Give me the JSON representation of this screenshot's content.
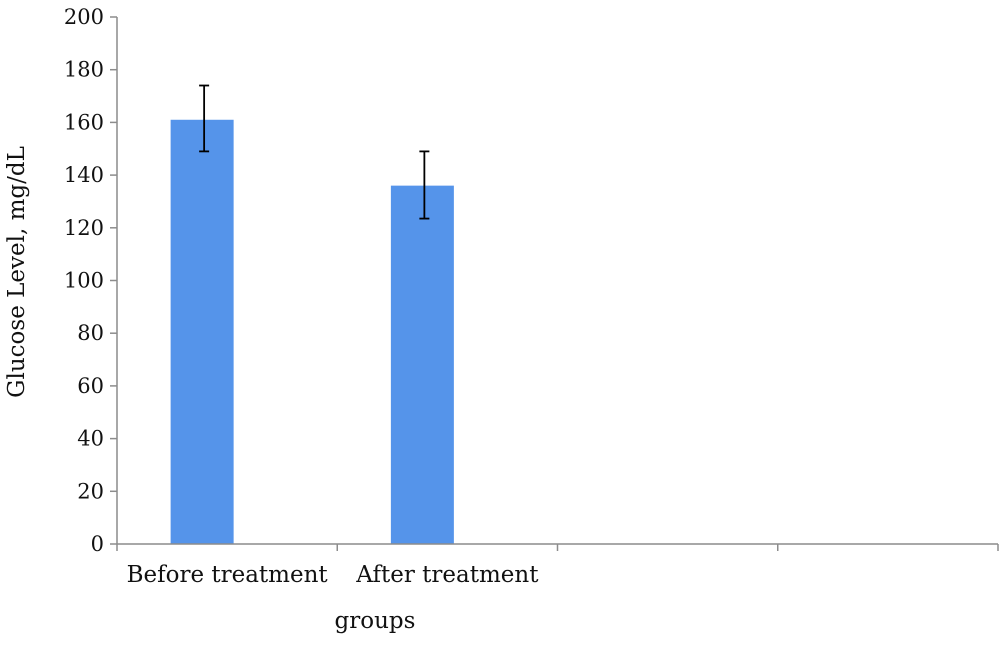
{
  "chart_data": {
    "type": "bar",
    "title": "",
    "xlabel": "groups",
    "ylabel": "Glucose Level, mg/dL",
    "ylim": [
      0,
      200
    ],
    "yticks": [
      0,
      20,
      40,
      60,
      80,
      100,
      120,
      140,
      160,
      180,
      200
    ],
    "category_slots": 4,
    "categories": [
      "Before treatment",
      "After treatment"
    ],
    "values": [
      161,
      136
    ],
    "error_low": [
      149,
      123.5
    ],
    "error_high": [
      174,
      149
    ],
    "bar_color": "#5594ea",
    "grid": false,
    "legend": "none"
  }
}
